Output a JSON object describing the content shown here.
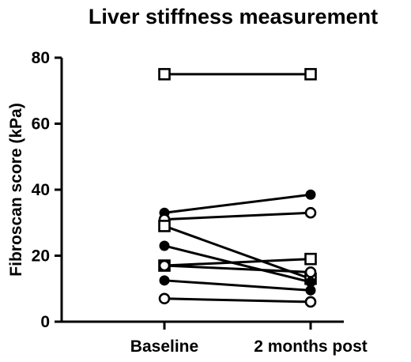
{
  "chart_data": {
    "type": "line",
    "title": "Liver stiffness measurement",
    "xlabel": "",
    "ylabel": "Fibroscan score (kPa)",
    "categories": [
      "Baseline",
      "2 months post"
    ],
    "ylim": [
      0,
      80
    ],
    "yticks": [
      0,
      20,
      40,
      60,
      80
    ],
    "grid": false,
    "legend": "none",
    "series": [
      {
        "marker": "open-square",
        "values": [
          75,
          75
        ]
      },
      {
        "marker": "filled-circle",
        "values": [
          33,
          38.5
        ]
      },
      {
        "marker": "open-circle",
        "values": [
          31,
          33
        ]
      },
      {
        "marker": "open-square",
        "values": [
          29,
          13
        ]
      },
      {
        "marker": "filled-circle",
        "values": [
          23,
          12
        ]
      },
      {
        "marker": "open-square",
        "values": [
          17,
          19
        ]
      },
      {
        "marker": "open-circle",
        "values": [
          17,
          15
        ]
      },
      {
        "marker": "filled-circle",
        "values": [
          12.5,
          9.5
        ]
      },
      {
        "marker": "open-circle",
        "values": [
          7,
          6
        ]
      }
    ]
  }
}
